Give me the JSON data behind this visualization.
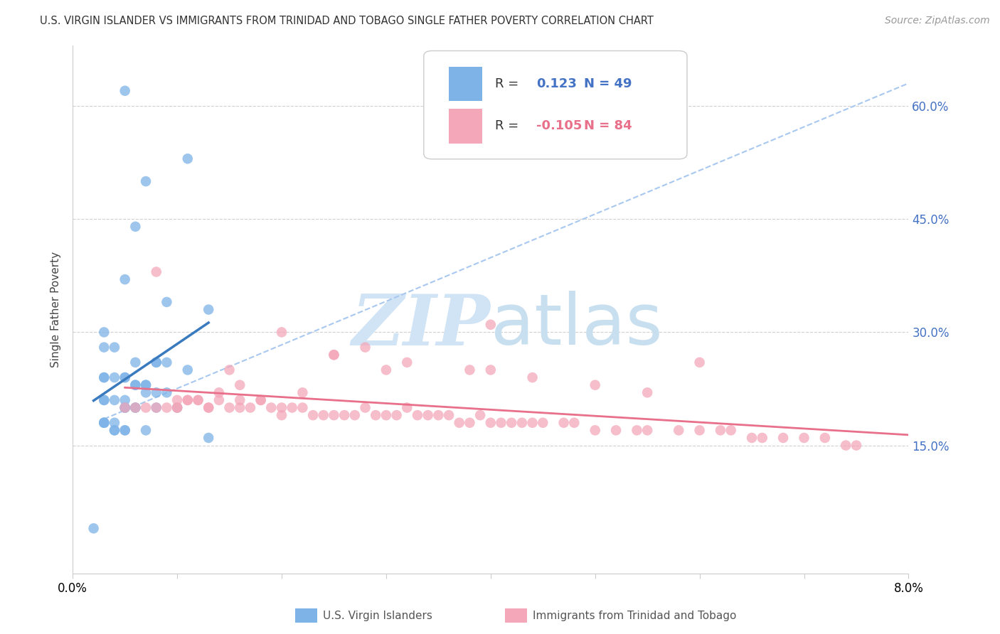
{
  "title": "U.S. VIRGIN ISLANDER VS IMMIGRANTS FROM TRINIDAD AND TOBAGO SINGLE FATHER POVERTY CORRELATION CHART",
  "source": "Source: ZipAtlas.com",
  "ylabel": "Single Father Poverty",
  "yticks": [
    "60.0%",
    "45.0%",
    "30.0%",
    "15.0%"
  ],
  "ytick_vals": [
    0.6,
    0.45,
    0.3,
    0.15
  ],
  "xlim": [
    0.0,
    0.08
  ],
  "ylim": [
    -0.02,
    0.68
  ],
  "legend_blue_r": "0.123",
  "legend_blue_n": "49",
  "legend_pink_r": "-0.105",
  "legend_pink_n": "84",
  "legend_label_blue": "U.S. Virgin Islanders",
  "legend_label_pink": "Immigrants from Trinidad and Tobago",
  "blue_color": "#7eb3e8",
  "pink_color": "#f4a7b9",
  "blue_line_color": "#3a7bbf",
  "pink_line_color": "#e8708a",
  "blue_dashed_color": "#a8c8f0",
  "watermark_color": "#d0e4f5",
  "blue_points_x": [
    0.005,
    0.007,
    0.011,
    0.006,
    0.005,
    0.009,
    0.013,
    0.003,
    0.003,
    0.004,
    0.006,
    0.008,
    0.008,
    0.009,
    0.011,
    0.003,
    0.003,
    0.004,
    0.005,
    0.005,
    0.006,
    0.006,
    0.007,
    0.007,
    0.007,
    0.008,
    0.009,
    0.003,
    0.003,
    0.004,
    0.005,
    0.005,
    0.005,
    0.005,
    0.006,
    0.006,
    0.008,
    0.01,
    0.003,
    0.003,
    0.003,
    0.004,
    0.004,
    0.004,
    0.005,
    0.005,
    0.007,
    0.013,
    0.002
  ],
  "blue_points_y": [
    0.62,
    0.5,
    0.53,
    0.44,
    0.37,
    0.34,
    0.33,
    0.3,
    0.28,
    0.28,
    0.26,
    0.26,
    0.26,
    0.26,
    0.25,
    0.24,
    0.24,
    0.24,
    0.24,
    0.24,
    0.23,
    0.23,
    0.23,
    0.23,
    0.22,
    0.22,
    0.22,
    0.21,
    0.21,
    0.21,
    0.21,
    0.2,
    0.2,
    0.2,
    0.2,
    0.2,
    0.2,
    0.2,
    0.18,
    0.18,
    0.18,
    0.18,
    0.17,
    0.17,
    0.17,
    0.17,
    0.17,
    0.16,
    0.04
  ],
  "pink_points_x": [
    0.005,
    0.006,
    0.007,
    0.008,
    0.009,
    0.01,
    0.01,
    0.011,
    0.011,
    0.012,
    0.013,
    0.013,
    0.014,
    0.015,
    0.016,
    0.016,
    0.017,
    0.018,
    0.019,
    0.02,
    0.02,
    0.021,
    0.022,
    0.023,
    0.024,
    0.025,
    0.026,
    0.027,
    0.028,
    0.029,
    0.03,
    0.031,
    0.032,
    0.033,
    0.034,
    0.035,
    0.036,
    0.037,
    0.038,
    0.039,
    0.04,
    0.041,
    0.042,
    0.043,
    0.044,
    0.045,
    0.047,
    0.048,
    0.05,
    0.052,
    0.054,
    0.055,
    0.058,
    0.06,
    0.062,
    0.063,
    0.065,
    0.066,
    0.068,
    0.07,
    0.072,
    0.074,
    0.075,
    0.04,
    0.02,
    0.025,
    0.028,
    0.032,
    0.038,
    0.04,
    0.044,
    0.05,
    0.055,
    0.06,
    0.025,
    0.03,
    0.015,
    0.018,
    0.022,
    0.01,
    0.012,
    0.014,
    0.016,
    0.008
  ],
  "pink_points_y": [
    0.2,
    0.2,
    0.2,
    0.2,
    0.2,
    0.21,
    0.2,
    0.21,
    0.21,
    0.21,
    0.2,
    0.2,
    0.21,
    0.2,
    0.21,
    0.2,
    0.2,
    0.21,
    0.2,
    0.2,
    0.19,
    0.2,
    0.2,
    0.19,
    0.19,
    0.19,
    0.19,
    0.19,
    0.2,
    0.19,
    0.19,
    0.19,
    0.2,
    0.19,
    0.19,
    0.19,
    0.19,
    0.18,
    0.18,
    0.19,
    0.18,
    0.18,
    0.18,
    0.18,
    0.18,
    0.18,
    0.18,
    0.18,
    0.17,
    0.17,
    0.17,
    0.17,
    0.17,
    0.17,
    0.17,
    0.17,
    0.16,
    0.16,
    0.16,
    0.16,
    0.16,
    0.15,
    0.15,
    0.31,
    0.3,
    0.27,
    0.28,
    0.26,
    0.25,
    0.25,
    0.24,
    0.23,
    0.22,
    0.26,
    0.27,
    0.25,
    0.25,
    0.21,
    0.22,
    0.2,
    0.21,
    0.22,
    0.23,
    0.38
  ]
}
